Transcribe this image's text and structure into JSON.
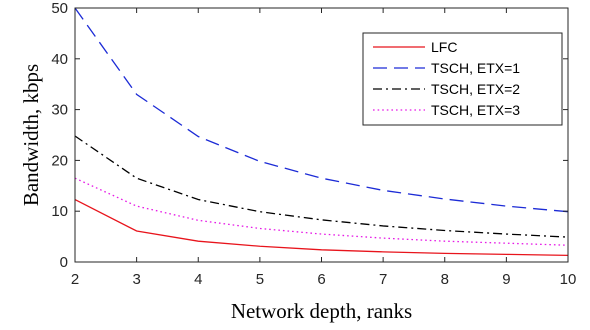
{
  "chart_data": {
    "type": "line",
    "xlabel": "Network depth, ranks",
    "ylabel": "Bandwidth, kbps",
    "xlim": [
      2,
      10
    ],
    "ylim": [
      0,
      50
    ],
    "x_ticks": [
      2,
      3,
      4,
      5,
      6,
      7,
      8,
      9,
      10
    ],
    "y_ticks": [
      0,
      10,
      20,
      30,
      40,
      50
    ],
    "grid": false,
    "legend_position": "top-right",
    "x": [
      2,
      3,
      4,
      5,
      6,
      7,
      8,
      9,
      10
    ],
    "series": [
      {
        "name": "LFC",
        "color": "#e8141c",
        "dash": "solid",
        "values": [
          12.3,
          6.1,
          4.1,
          3.1,
          2.4,
          2.0,
          1.7,
          1.5,
          1.3
        ]
      },
      {
        "name": "TSCH, ETX=1",
        "color": "#1c2bd6",
        "dash": "dashed",
        "values": [
          50,
          33.0,
          24.7,
          19.8,
          16.5,
          14.1,
          12.4,
          11.0,
          9.9
        ]
      },
      {
        "name": "TSCH, ETX=2",
        "color": "#000000",
        "dash": "dashdot",
        "values": [
          24.8,
          16.5,
          12.3,
          9.9,
          8.3,
          7.1,
          6.2,
          5.5,
          4.9
        ]
      },
      {
        "name": "TSCH, ETX=3",
        "color": "#e619e6",
        "dash": "dotted",
        "values": [
          16.5,
          11.0,
          8.2,
          6.6,
          5.5,
          4.7,
          4.1,
          3.7,
          3.3
        ]
      }
    ]
  }
}
